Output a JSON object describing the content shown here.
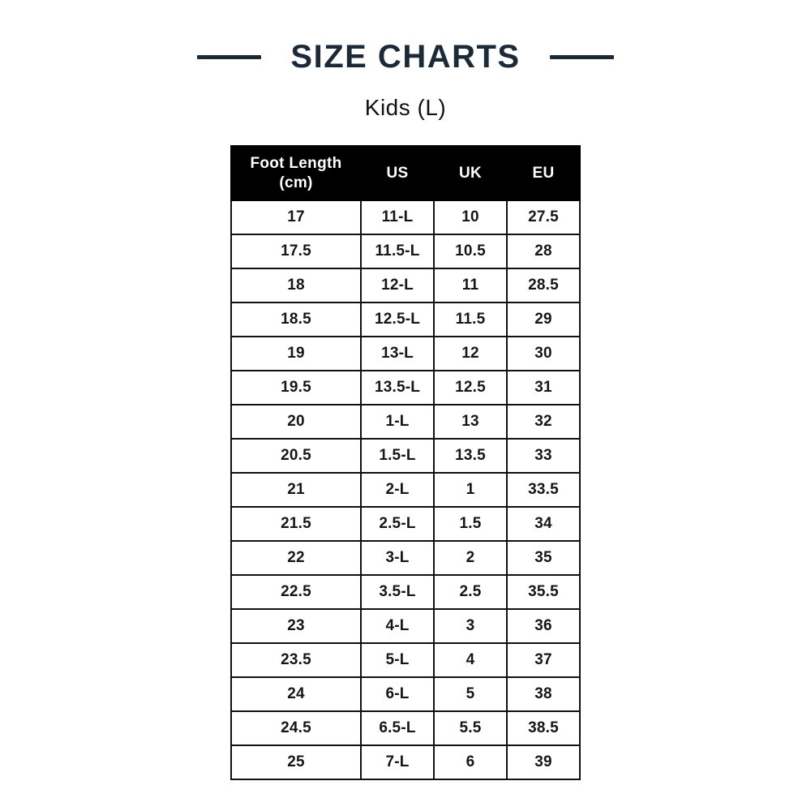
{
  "header": {
    "title": "SIZE CHARTS",
    "subtitle": "Kids (L)"
  },
  "colors": {
    "title": "#1c2a38",
    "header_bg": "#000000",
    "header_text": "#ffffff",
    "border": "#101010",
    "cell_text": "#161616",
    "page_bg": "#ffffff"
  },
  "chart_data": {
    "type": "table",
    "title": "SIZE CHARTS",
    "subtitle": "Kids (L)",
    "columns": [
      "Foot Length (cm)",
      "US",
      "UK",
      "EU"
    ],
    "rows": [
      [
        "17",
        "11-L",
        "10",
        "27.5"
      ],
      [
        "17.5",
        "11.5-L",
        "10.5",
        "28"
      ],
      [
        "18",
        "12-L",
        "11",
        "28.5"
      ],
      [
        "18.5",
        "12.5-L",
        "11.5",
        "29"
      ],
      [
        "19",
        "13-L",
        "12",
        "30"
      ],
      [
        "19.5",
        "13.5-L",
        "12.5",
        "31"
      ],
      [
        "20",
        "1-L",
        "13",
        "32"
      ],
      [
        "20.5",
        "1.5-L",
        "13.5",
        "33"
      ],
      [
        "21",
        "2-L",
        "1",
        "33.5"
      ],
      [
        "21.5",
        "2.5-L",
        "1.5",
        "34"
      ],
      [
        "22",
        "3-L",
        "2",
        "35"
      ],
      [
        "22.5",
        "3.5-L",
        "2.5",
        "35.5"
      ],
      [
        "23",
        "4-L",
        "3",
        "36"
      ],
      [
        "23.5",
        "5-L",
        "4",
        "37"
      ],
      [
        "24",
        "6-L",
        "5",
        "38"
      ],
      [
        "24.5",
        "6.5-L",
        "5.5",
        "38.5"
      ],
      [
        "25",
        "7-L",
        "6",
        "39"
      ]
    ]
  }
}
